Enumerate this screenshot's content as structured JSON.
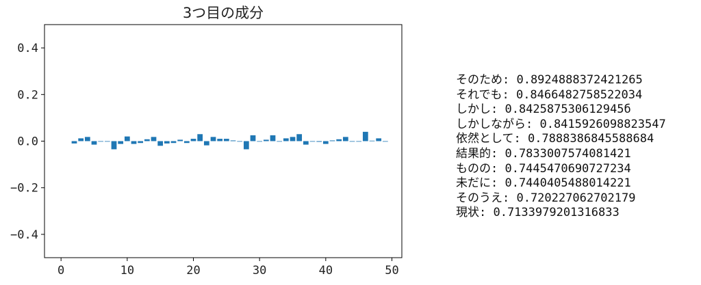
{
  "chart_data": {
    "type": "bar",
    "title": "3つ目の成分",
    "xlabel": "",
    "ylabel": "",
    "xlim": [
      -2.5,
      51.5
    ],
    "ylim": [
      -0.5,
      0.5
    ],
    "xticks": [
      0,
      10,
      20,
      30,
      40,
      50
    ],
    "yticks": [
      -0.4,
      -0.2,
      0.0,
      0.2,
      0.4
    ],
    "x": [
      2,
      3,
      4,
      5,
      6,
      7,
      8,
      9,
      10,
      11,
      12,
      13,
      14,
      15,
      16,
      17,
      18,
      19,
      20,
      21,
      22,
      23,
      24,
      25,
      26,
      27,
      28,
      29,
      30,
      31,
      32,
      33,
      34,
      35,
      36,
      37,
      38,
      39,
      40,
      41,
      42,
      43,
      44,
      45,
      46,
      47,
      48,
      49
    ],
    "values": [
      -0.01,
      0.012,
      0.018,
      -0.015,
      0.0,
      -0.002,
      -0.035,
      -0.012,
      0.02,
      -0.012,
      -0.008,
      0.008,
      0.018,
      -0.02,
      -0.01,
      -0.008,
      0.006,
      -0.008,
      0.01,
      0.03,
      -0.018,
      0.018,
      0.01,
      0.01,
      0.003,
      -0.002,
      -0.035,
      0.025,
      0.0,
      0.006,
      0.025,
      0.0,
      0.012,
      0.018,
      0.03,
      -0.015,
      0.0,
      -0.003,
      -0.012,
      0.003,
      0.008,
      0.018,
      0.0,
      0.0,
      0.04,
      0.002,
      0.012,
      0.0
    ],
    "bar_color": "#1f77b4"
  },
  "side_list": [
    "そのため: 0.8924888372421265",
    "それでも: 0.8466482758522034",
    "しかし: 0.842587530612945б",
    "しかしながら: 0.8415926098823547",
    "依然として: 0.7888386845588684",
    "結果的: 0.7833007574081421",
    "ものの: 0.7445470690727234",
    "未だに: 0.7440405488014221",
    "そのうえ: 0.720227062702179",
    "現状: 0.7133979201316833"
  ]
}
